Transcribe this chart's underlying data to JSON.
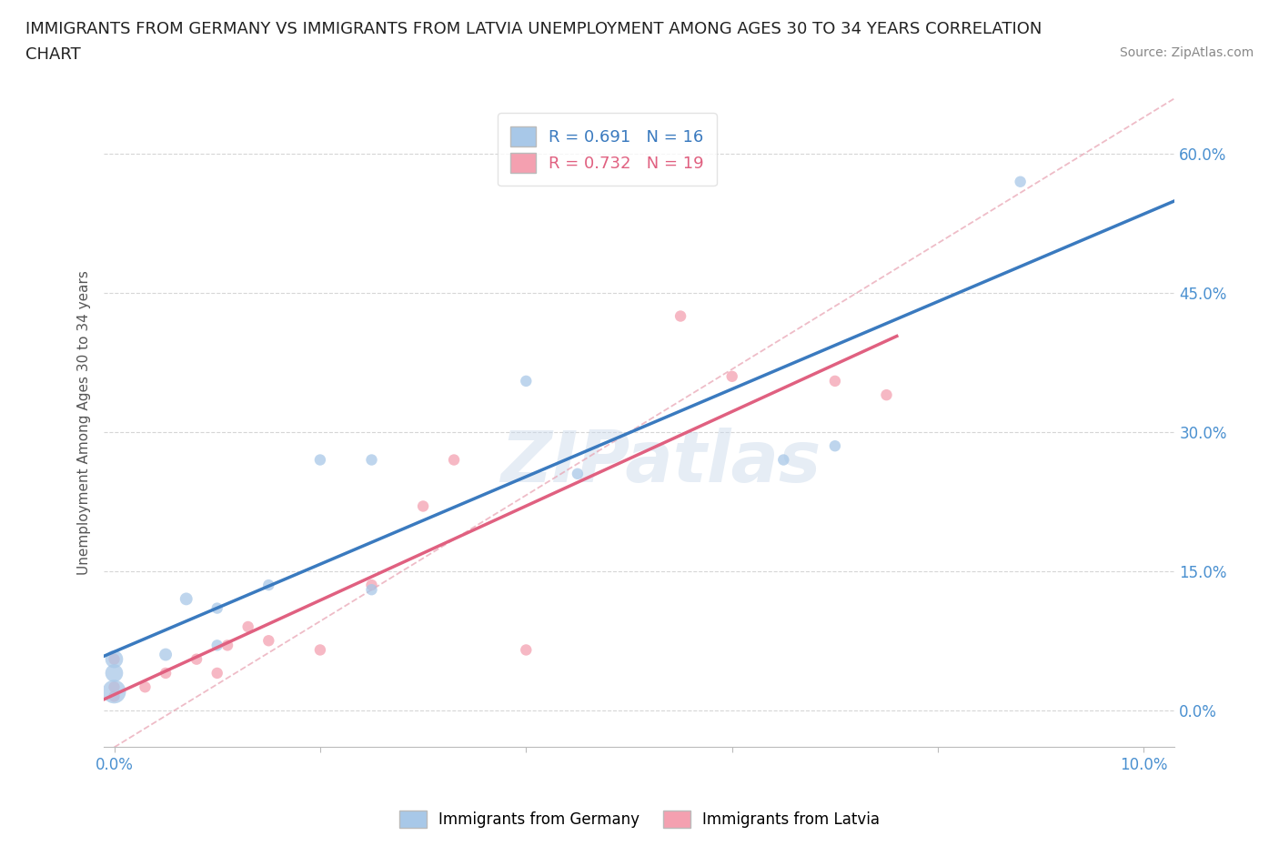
{
  "title_line1": "IMMIGRANTS FROM GERMANY VS IMMIGRANTS FROM LATVIA UNEMPLOYMENT AMONG AGES 30 TO 34 YEARS CORRELATION",
  "title_line2": "CHART",
  "source": "Source: ZipAtlas.com",
  "ylabel": "Unemployment Among Ages 30 to 34 years",
  "xlim": [
    -0.001,
    0.103
  ],
  "ylim": [
    -0.04,
    0.66
  ],
  "yticks": [
    0.0,
    0.15,
    0.3,
    0.45,
    0.6
  ],
  "ytick_labels": [
    "0.0%",
    "15.0%",
    "30.0%",
    "45.0%",
    "60.0%"
  ],
  "xticks": [
    0.0,
    0.02,
    0.04,
    0.06,
    0.08,
    0.1
  ],
  "xtick_labels": [
    "0.0%",
    "",
    "",
    "",
    "",
    "10.0%"
  ],
  "germany_color": "#a8c8e8",
  "latvia_color": "#f4a0b0",
  "trendline_germany_color": "#3a7abf",
  "trendline_latvia_color": "#e06080",
  "tick_label_color": "#4a90d0",
  "R_germany": 0.691,
  "N_germany": 16,
  "R_latvia": 0.732,
  "N_latvia": 19,
  "germany_x": [
    0.0,
    0.0,
    0.0,
    0.005,
    0.007,
    0.01,
    0.01,
    0.015,
    0.02,
    0.025,
    0.025,
    0.04,
    0.045,
    0.065,
    0.07,
    0.088
  ],
  "germany_y": [
    0.02,
    0.04,
    0.055,
    0.06,
    0.12,
    0.07,
    0.11,
    0.135,
    0.27,
    0.27,
    0.13,
    0.355,
    0.255,
    0.27,
    0.285,
    0.57
  ],
  "germany_sizes": [
    350,
    200,
    200,
    100,
    100,
    80,
    80,
    80,
    80,
    80,
    80,
    80,
    80,
    80,
    80,
    80
  ],
  "latvia_x": [
    0.0,
    0.0,
    0.0,
    0.003,
    0.005,
    0.008,
    0.01,
    0.011,
    0.013,
    0.015,
    0.02,
    0.025,
    0.03,
    0.033,
    0.04,
    0.055,
    0.06,
    0.07,
    0.075
  ],
  "latvia_y": [
    0.015,
    0.025,
    0.055,
    0.025,
    0.04,
    0.055,
    0.04,
    0.07,
    0.09,
    0.075,
    0.065,
    0.135,
    0.22,
    0.27,
    0.065,
    0.425,
    0.36,
    0.355,
    0.34
  ],
  "latvia_sizes": [
    80,
    80,
    80,
    80,
    80,
    80,
    80,
    80,
    80,
    80,
    80,
    80,
    80,
    80,
    80,
    80,
    80,
    80,
    80
  ],
  "dashed_line_x": [
    0.0,
    0.103
  ],
  "dashed_line_y": [
    -0.04,
    0.66
  ],
  "watermark": "ZIPatlas",
  "background_color": "#ffffff",
  "grid_color": "#cccccc"
}
